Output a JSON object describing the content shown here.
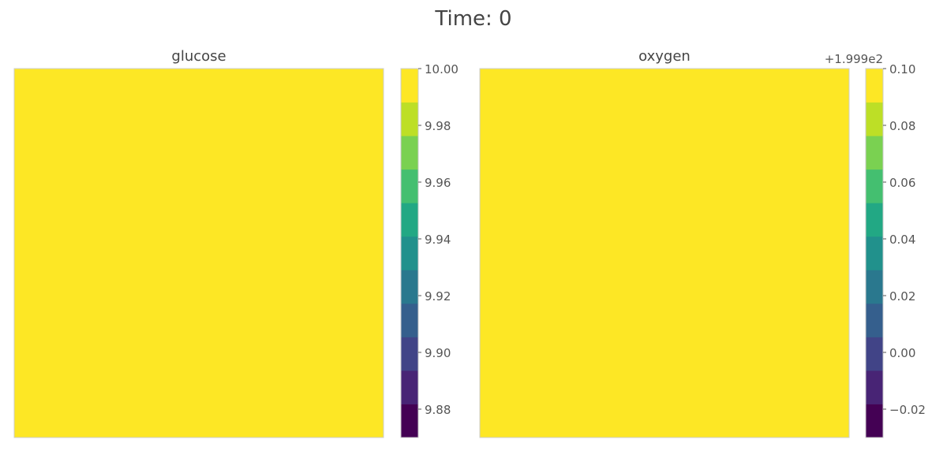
{
  "figure": {
    "title": "Time: 0"
  },
  "chart_data": [
    {
      "type": "heatmap",
      "title": "glucose",
      "field_value": 10.0,
      "colorbar": {
        "colormap": "viridis",
        "range": [
          9.87,
          10.0
        ],
        "ticks": [
          9.88,
          9.9,
          9.92,
          9.94,
          9.96,
          9.98,
          10.0
        ],
        "tick_labels": [
          "9.88",
          "9.90",
          "9.92",
          "9.94",
          "9.96",
          "9.98",
          "10.00"
        ],
        "offset_label": ""
      },
      "grid": false
    },
    {
      "type": "heatmap",
      "title": "oxygen",
      "field_value": 0.1,
      "colorbar": {
        "colormap": "viridis",
        "range": [
          -0.03,
          0.1
        ],
        "ticks": [
          -0.02,
          0.0,
          0.02,
          0.04,
          0.06,
          0.08,
          0.1
        ],
        "tick_labels": [
          "−0.02",
          "0.00",
          "0.02",
          "0.04",
          "0.06",
          "0.08",
          "0.10"
        ],
        "offset_label": "+1.999e2"
      },
      "grid": false
    }
  ],
  "colors": {
    "field_fill": "#fde725",
    "frame": "#cccccc",
    "text": "#555555",
    "title_text": "#444444"
  },
  "viridis_stops": [
    "#440154",
    "#482475",
    "#414487",
    "#355f8d",
    "#2a788e",
    "#21918c",
    "#22a884",
    "#44bf70",
    "#7ad151",
    "#bddf26",
    "#fde725"
  ]
}
